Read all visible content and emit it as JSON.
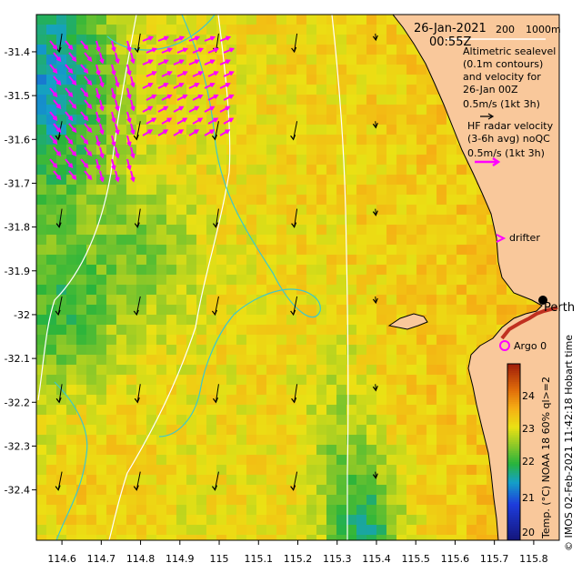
{
  "map": {
    "date": "26-Jan-2021",
    "time": "00:55Z",
    "depth_labels": [
      "200",
      "1000m"
    ],
    "altimetry_text": [
      "Altimetric sealevel",
      "(0.1m contours)",
      "and velocity for",
      "26-Jan 00Z",
      "0.5m/s (1kt 3h)"
    ],
    "radar_text": [
      "HF radar velocity",
      "(3-6h avg) noQC",
      "0.5m/s (1kt 3h)"
    ],
    "drifter_label": "drifter",
    "argo_label": "Argo 0",
    "place_label": "Perth",
    "colorbar_label": "Temp. (°C) NOAA 18 60% ql>=2",
    "credit": "© IMOS 02-Feb-2021 11:42:18 Hobart time",
    "colorbar_ticks": [
      "24",
      "23",
      "22",
      "21",
      "20"
    ],
    "y_ticks": [
      "-31.4",
      "-31.5",
      "-31.6",
      "-31.7",
      "-31.8",
      "-31.9",
      "-32",
      "-32.1",
      "-32.2",
      "-32.3",
      "-32.4"
    ],
    "x_ticks": [
      "114.6",
      "114.7",
      "114.8",
      "114.9",
      "115",
      "115.1",
      "115.2",
      "115.3",
      "115.4",
      "115.5",
      "115.6",
      "115.7",
      "115.8"
    ],
    "colors": {
      "land": "#f9c89b",
      "radar_arrow": "#ff00ff",
      "altimetry_arrow": "#000000",
      "contour_sealevel": "#40c8c8",
      "contour_depth": "#ffffff",
      "argo": "#ff00ff"
    },
    "extent": {
      "lon": [
        114.535,
        115.865
      ],
      "lat": [
        -32.515,
        -31.315
      ]
    }
  }
}
